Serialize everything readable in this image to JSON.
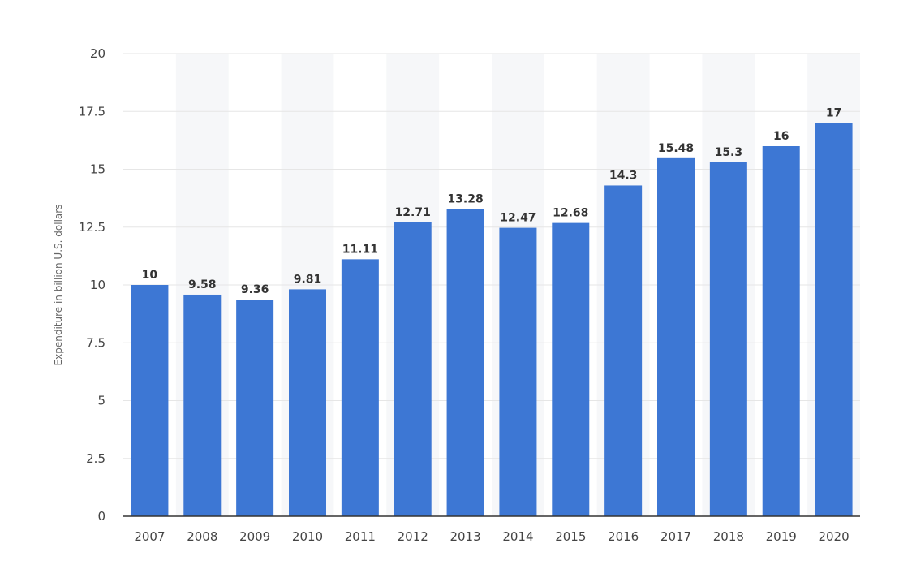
{
  "chart_data": {
    "type": "bar",
    "title": "",
    "xlabel": "",
    "ylabel": "Expenditure in billion U.S. dollars",
    "categories": [
      "2007",
      "2008",
      "2009",
      "2010",
      "2011",
      "2012",
      "2013",
      "2014",
      "2015",
      "2016",
      "2017",
      "2018",
      "2019",
      "2020"
    ],
    "values": [
      10,
      9.58,
      9.36,
      9.81,
      11.11,
      12.71,
      13.28,
      12.47,
      12.68,
      14.3,
      15.48,
      15.3,
      16,
      17
    ],
    "value_labels": [
      "10",
      "9.58",
      "9.36",
      "9.81",
      "11.11",
      "12.71",
      "13.28",
      "12.47",
      "12.68",
      "14.3",
      "15.48",
      "15.3",
      "16",
      "17"
    ],
    "ylim": [
      0,
      20
    ],
    "yticks": [
      "0",
      "2.5",
      "5",
      "7.5",
      "10",
      "12.5",
      "15",
      "17.5",
      "20"
    ],
    "grid": true,
    "legend": "none",
    "colors": {
      "bar": "#3d77d4",
      "grid": "#e6e6e6",
      "axis": "#333333",
      "band": "#f6f7f9"
    }
  }
}
